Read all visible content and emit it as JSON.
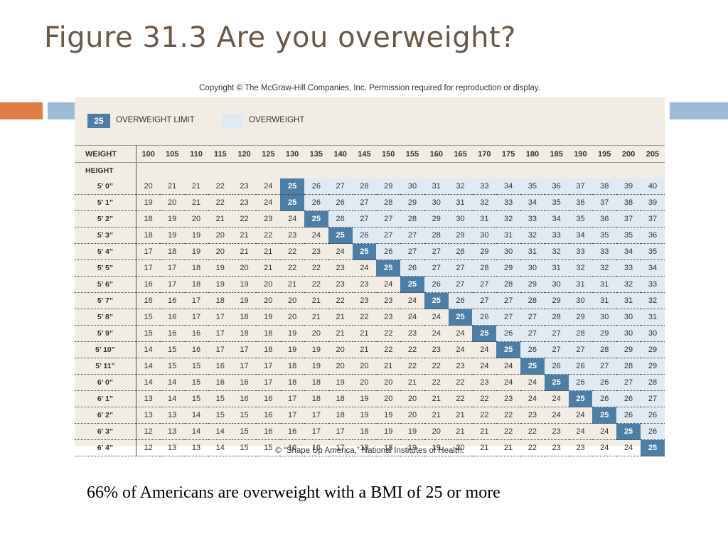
{
  "slide": {
    "title": "Figure 31.3  Are you overweight?",
    "caption": "66% of Americans are overweight with a BMI of 25 or more"
  },
  "figure": {
    "copyright": "Copyright © The McGraw-Hill Companies, Inc. Permission required for reproduction or display.",
    "source": "© “Shape Up America,” National Institutes of Health.",
    "legend": {
      "limit_value": "25",
      "limit_label": "OVERWEIGHT LIMIT",
      "over_label": "OVERWEIGHT"
    },
    "weight_label": "WEIGHT",
    "height_label": "HEIGHT",
    "weights": [
      "100",
      "105",
      "110",
      "115",
      "120",
      "125",
      "130",
      "135",
      "140",
      "145",
      "150",
      "155",
      "160",
      "165",
      "170",
      "175",
      "180",
      "185",
      "190",
      "195",
      "200",
      "205"
    ],
    "rows": [
      {
        "height": "5’ 0”",
        "bmi": [
          20,
          21,
          21,
          22,
          23,
          24,
          25,
          26,
          27,
          28,
          29,
          30,
          31,
          32,
          33,
          34,
          35,
          36,
          37,
          38,
          39,
          40
        ]
      },
      {
        "height": "5’ 1”",
        "bmi": [
          19,
          20,
          21,
          22,
          23,
          24,
          25,
          26,
          26,
          27,
          28,
          29,
          30,
          31,
          32,
          33,
          34,
          35,
          36,
          37,
          38,
          39
        ]
      },
      {
        "height": "5’ 2”",
        "bmi": [
          18,
          19,
          20,
          21,
          22,
          23,
          24,
          25,
          26,
          27,
          27,
          28,
          29,
          30,
          31,
          32,
          33,
          34,
          35,
          36,
          37,
          37
        ]
      },
      {
        "height": "5’ 3”",
        "bmi": [
          18,
          19,
          19,
          20,
          21,
          22,
          23,
          24,
          25,
          26,
          27,
          27,
          28,
          29,
          30,
          31,
          32,
          33,
          34,
          35,
          35,
          36
        ]
      },
      {
        "height": "5’ 4”",
        "bmi": [
          17,
          18,
          19,
          20,
          21,
          21,
          22,
          23,
          24,
          25,
          26,
          27,
          27,
          28,
          29,
          30,
          31,
          32,
          33,
          33,
          34,
          35
        ]
      },
      {
        "height": "5’ 5”",
        "bmi": [
          17,
          17,
          18,
          19,
          20,
          21,
          22,
          22,
          23,
          24,
          25,
          26,
          27,
          27,
          28,
          29,
          30,
          31,
          32,
          32,
          33,
          34
        ]
      },
      {
        "height": "5’ 6”",
        "bmi": [
          16,
          17,
          18,
          19,
          19,
          20,
          21,
          22,
          23,
          23,
          24,
          25,
          26,
          27,
          27,
          28,
          29,
          30,
          31,
          31,
          32,
          33
        ]
      },
      {
        "height": "5’ 7”",
        "bmi": [
          16,
          16,
          17,
          18,
          19,
          20,
          20,
          21,
          22,
          23,
          23,
          24,
          25,
          26,
          27,
          27,
          28,
          29,
          30,
          31,
          31,
          32
        ]
      },
      {
        "height": "5’ 8”",
        "bmi": [
          15,
          16,
          17,
          17,
          18,
          19,
          20,
          21,
          21,
          22,
          23,
          24,
          24,
          25,
          26,
          27,
          27,
          28,
          29,
          30,
          30,
          31
        ]
      },
      {
        "height": "5’ 9”",
        "bmi": [
          15,
          16,
          16,
          17,
          18,
          18,
          19,
          20,
          21,
          21,
          22,
          23,
          24,
          24,
          25,
          26,
          27,
          27,
          28,
          29,
          30,
          30
        ]
      },
      {
        "height": "5’ 10”",
        "bmi": [
          14,
          15,
          16,
          17,
          17,
          18,
          19,
          19,
          20,
          21,
          22,
          22,
          23,
          24,
          24,
          25,
          26,
          27,
          27,
          28,
          29,
          29
        ]
      },
      {
        "height": "5’ 11”",
        "bmi": [
          14,
          15,
          15,
          16,
          17,
          17,
          18,
          19,
          20,
          20,
          21,
          22,
          22,
          23,
          24,
          24,
          25,
          26,
          26,
          27,
          28,
          29
        ]
      },
      {
        "height": "6’ 0”",
        "bmi": [
          14,
          14,
          15,
          16,
          16,
          17,
          18,
          18,
          19,
          20,
          20,
          21,
          22,
          22,
          23,
          24,
          24,
          25,
          26,
          26,
          27,
          28
        ]
      },
      {
        "height": "6’ 1”",
        "bmi": [
          13,
          14,
          15,
          15,
          16,
          16,
          17,
          18,
          18,
          19,
          20,
          20,
          21,
          22,
          22,
          23,
          24,
          24,
          25,
          26,
          26,
          27
        ]
      },
      {
        "height": "6’ 2”",
        "bmi": [
          13,
          13,
          14,
          15,
          15,
          16,
          17,
          17,
          18,
          19,
          19,
          20,
          21,
          21,
          22,
          22,
          23,
          24,
          24,
          25,
          26,
          26
        ]
      },
      {
        "height": "6’ 3”",
        "bmi": [
          12,
          13,
          14,
          14,
          15,
          16,
          16,
          17,
          17,
          18,
          19,
          19,
          20,
          21,
          21,
          22,
          22,
          23,
          24,
          24,
          25,
          26
        ]
      },
      {
        "height": "6’ 4”",
        "bmi": [
          12,
          13,
          13,
          14,
          15,
          15,
          16,
          16,
          17,
          18,
          18,
          19,
          19,
          20,
          21,
          21,
          22,
          23,
          23,
          24,
          24,
          25
        ]
      }
    ],
    "overweight_threshold": 25
  },
  "colors": {
    "title": "#6b5847",
    "accent_orange": "#de7e45",
    "accent_blue": "#9dbad6",
    "panel_bg": "#f1ece4",
    "limit_cell": "#4d7fa6",
    "overweight_cell": "#dfeaf2"
  }
}
